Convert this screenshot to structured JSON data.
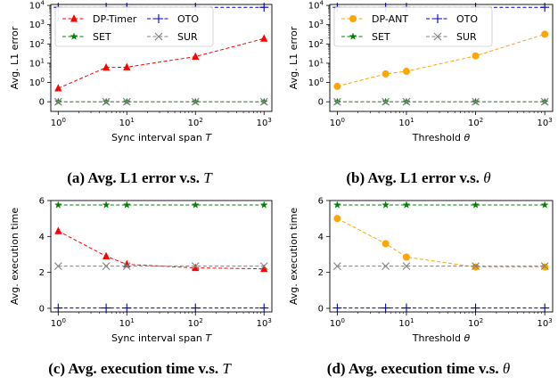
{
  "figure": {
    "captions": [
      {
        "label": "(a) Avg. L1 error v.s.",
        "var": "T"
      },
      {
        "label": "(b) Avg. L1 error v.s.",
        "var": "θ"
      },
      {
        "label": "(c) Avg. execution time v.s.",
        "var": "T"
      },
      {
        "label": "(d) Avg. execution time v.s.",
        "var": "θ"
      }
    ]
  },
  "chart_data": [
    {
      "id": "a",
      "type": "line",
      "xlabel": "Sync interval span T",
      "ylabel": "Avg. L1 error",
      "xscale": "log",
      "yscale": "symlog",
      "x_ticks": [
        "10^0",
        "10^1",
        "10^2",
        "10^3"
      ],
      "y_ticks": [
        "0",
        "10^0",
        "10^1",
        "10^2",
        "10^3",
        "10^4"
      ],
      "grid": false,
      "legend": "top-left, 2 columns",
      "series": [
        {
          "name": "DP-Timer",
          "color": "#ff0000",
          "marker": "triangle",
          "x": [
            1,
            5,
            10,
            100,
            1000
          ],
          "y": [
            0.7,
            6,
            6.2,
            22,
            190
          ]
        },
        {
          "name": "OTO",
          "color": "#0000cc",
          "marker": "plus",
          "x": [
            1,
            5,
            10,
            100,
            1000
          ],
          "y": [
            8000,
            8000,
            8000,
            8000,
            8000
          ]
        },
        {
          "name": "SET",
          "color": "#008000",
          "marker": "star",
          "x": [
            1,
            5,
            10,
            100,
            1000
          ],
          "y": [
            0,
            0,
            0,
            0,
            0
          ]
        },
        {
          "name": "SUR",
          "color": "#808080",
          "marker": "x",
          "x": [
            1,
            5,
            10,
            100,
            1000
          ],
          "y": [
            0,
            0,
            0,
            0,
            0
          ]
        }
      ]
    },
    {
      "id": "b",
      "type": "line",
      "xlabel": "Threshold θ",
      "ylabel": "Avg. L1 error",
      "xscale": "log",
      "yscale": "symlog",
      "x_ticks": [
        "10^0",
        "10^1",
        "10^2",
        "10^3"
      ],
      "y_ticks": [
        "0",
        "10^0",
        "10^1",
        "10^2",
        "10^3",
        "10^4"
      ],
      "grid": false,
      "legend": "top-left, 2 columns",
      "series": [
        {
          "name": "DP-ANT",
          "color": "#ffa500",
          "marker": "circle",
          "x": [
            1,
            5,
            10,
            100,
            1000
          ],
          "y": [
            0.8,
            2.8,
            3.8,
            24,
            320
          ]
        },
        {
          "name": "OTO",
          "color": "#0000cc",
          "marker": "plus",
          "x": [
            1,
            5,
            10,
            100,
            1000
          ],
          "y": [
            8000,
            8000,
            8000,
            8000,
            8000
          ]
        },
        {
          "name": "SET",
          "color": "#008000",
          "marker": "star",
          "x": [
            1,
            5,
            10,
            100,
            1000
          ],
          "y": [
            0,
            0,
            0,
            0,
            0
          ]
        },
        {
          "name": "SUR",
          "color": "#808080",
          "marker": "x",
          "x": [
            1,
            5,
            10,
            100,
            1000
          ],
          "y": [
            0,
            0,
            0,
            0,
            0
          ]
        }
      ]
    },
    {
      "id": "c",
      "type": "line",
      "xlabel": "Sync interval span T",
      "ylabel": "Avg. execution time",
      "xscale": "log",
      "yscale": "linear",
      "ylim": [
        -0.2,
        6
      ],
      "x_ticks": [
        "10^0",
        "10^1",
        "10^2",
        "10^3"
      ],
      "y_ticks": [
        "0",
        "2",
        "4",
        "6"
      ],
      "grid": false,
      "series": [
        {
          "name": "DP-Timer",
          "color": "#ff0000",
          "marker": "triangle",
          "x": [
            1,
            5,
            10,
            100,
            1000
          ],
          "y": [
            4.3,
            2.9,
            2.45,
            2.25,
            2.2
          ]
        },
        {
          "name": "OTO",
          "color": "#0000cc",
          "marker": "plus",
          "x": [
            1,
            5,
            10,
            100,
            1000
          ],
          "y": [
            0.02,
            0.02,
            0.02,
            0.02,
            0.02
          ]
        },
        {
          "name": "SET",
          "color": "#008000",
          "marker": "star",
          "x": [
            1,
            5,
            10,
            100,
            1000
          ],
          "y": [
            5.75,
            5.75,
            5.75,
            5.75,
            5.75
          ]
        },
        {
          "name": "SUR",
          "color": "#808080",
          "marker": "x",
          "x": [
            1,
            5,
            10,
            100,
            1000
          ],
          "y": [
            2.35,
            2.35,
            2.35,
            2.35,
            2.35
          ]
        }
      ]
    },
    {
      "id": "d",
      "type": "line",
      "xlabel": "Threshold θ",
      "ylabel": "Avg. execution time",
      "xscale": "log",
      "yscale": "linear",
      "ylim": [
        -0.2,
        6
      ],
      "x_ticks": [
        "10^0",
        "10^1",
        "10^2",
        "10^3"
      ],
      "y_ticks": [
        "0",
        "2",
        "4",
        "6"
      ],
      "grid": false,
      "series": [
        {
          "name": "DP-ANT",
          "color": "#ffa500",
          "marker": "circle",
          "x": [
            1,
            5,
            10,
            100,
            1000
          ],
          "y": [
            5.0,
            3.6,
            2.85,
            2.3,
            2.3
          ]
        },
        {
          "name": "OTO",
          "color": "#0000cc",
          "marker": "plus",
          "x": [
            1,
            5,
            10,
            100,
            1000
          ],
          "y": [
            0.02,
            0.02,
            0.02,
            0.02,
            0.02
          ]
        },
        {
          "name": "SET",
          "color": "#008000",
          "marker": "star",
          "x": [
            1,
            5,
            10,
            100,
            1000
          ],
          "y": [
            5.75,
            5.75,
            5.75,
            5.75,
            5.75
          ]
        },
        {
          "name": "SUR",
          "color": "#808080",
          "marker": "x",
          "x": [
            1,
            5,
            10,
            100,
            1000
          ],
          "y": [
            2.35,
            2.35,
            2.35,
            2.35,
            2.35
          ]
        }
      ]
    }
  ]
}
